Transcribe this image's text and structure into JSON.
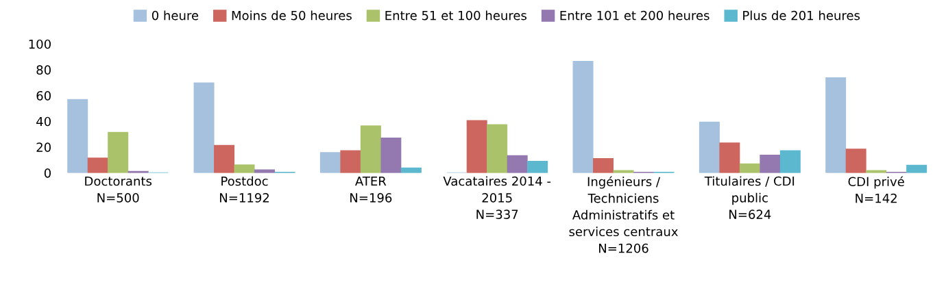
{
  "chart_data": {
    "type": "bar",
    "categories": [
      "Doctorants\nN=500",
      "Postdoc\nN=1192",
      "ATER\nN=196",
      "Vacataires 2014 -\n2015\nN=337",
      "Ingénieurs /\nTechniciens\nAdministratifs et\nservices centraux\nN=1206",
      "Titulaires / CDI\npublic\nN=624",
      "CDI privé\nN=142"
    ],
    "series": [
      {
        "name": "0 heure",
        "color": "#a5c1de",
        "values": [
          56.8,
          69.7,
          15.7,
          0,
          86.5,
          39.3,
          73.7
        ]
      },
      {
        "name": "Moins de 50 heures",
        "color": "#cd665f",
        "values": [
          11.4,
          21.3,
          17.1,
          40.5,
          11.0,
          23.2,
          18.4
        ]
      },
      {
        "name": "Entre 51 et 100 heures",
        "color": "#aac36b",
        "values": [
          31.4,
          6.1,
          36.4,
          37.3,
          1.8,
          7.0,
          1.8
        ]
      },
      {
        "name": "Entre 101 et 200 heures",
        "color": "#9379b0",
        "values": [
          1.1,
          2.3,
          27.0,
          13.3,
          0.5,
          13.7,
          0.5
        ]
      },
      {
        "name": "Plus de 201 heures",
        "color": "#5bb8cf",
        "values": [
          0,
          0.5,
          3.8,
          9.0,
          0.5,
          17.1,
          5.9
        ]
      }
    ],
    "ylim": [
      0,
      100
    ],
    "yticks": [
      0,
      20,
      40,
      60,
      80,
      100
    ],
    "grid": false,
    "legend": "top"
  }
}
